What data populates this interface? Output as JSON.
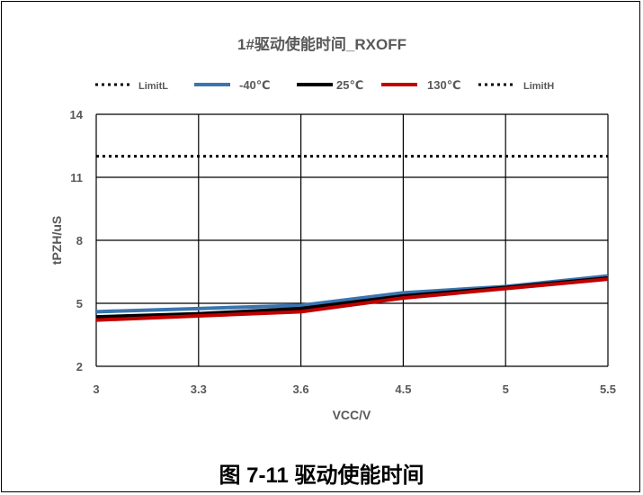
{
  "caption": "图 7-11 驱动使能时间",
  "chart_data": {
    "type": "line",
    "title": "1#驱动使能时间_RXOFF",
    "xlabel": "VCC/V",
    "ylabel": "tPZH/uS",
    "categories": [
      "3",
      "3.3",
      "3.6",
      "4.5",
      "5",
      "5.5"
    ],
    "y_ticks": [
      "14",
      "11",
      "8",
      "5",
      "2"
    ],
    "ylim": [
      2,
      14
    ],
    "grid": true,
    "legend_position": "top",
    "series": [
      {
        "name": "LimitL",
        "color": "#000000",
        "style": "dotted",
        "values": null
      },
      {
        "name": "-40℃",
        "color": "#3a75b0",
        "style": "solid",
        "values": [
          4.6,
          4.75,
          4.9,
          5.5,
          5.8,
          6.3
        ]
      },
      {
        "name": "25℃",
        "color": "#000000",
        "style": "solid",
        "values": [
          4.35,
          4.5,
          4.75,
          5.35,
          5.75,
          6.2
        ]
      },
      {
        "name": "130℃",
        "color": "#c00000",
        "style": "solid",
        "values": [
          4.2,
          4.4,
          4.6,
          5.25,
          5.7,
          6.15
        ]
      },
      {
        "name": "LimitH",
        "color": "#000000",
        "style": "dotted",
        "values": [
          12,
          12,
          12,
          12,
          12,
          12
        ]
      }
    ]
  }
}
